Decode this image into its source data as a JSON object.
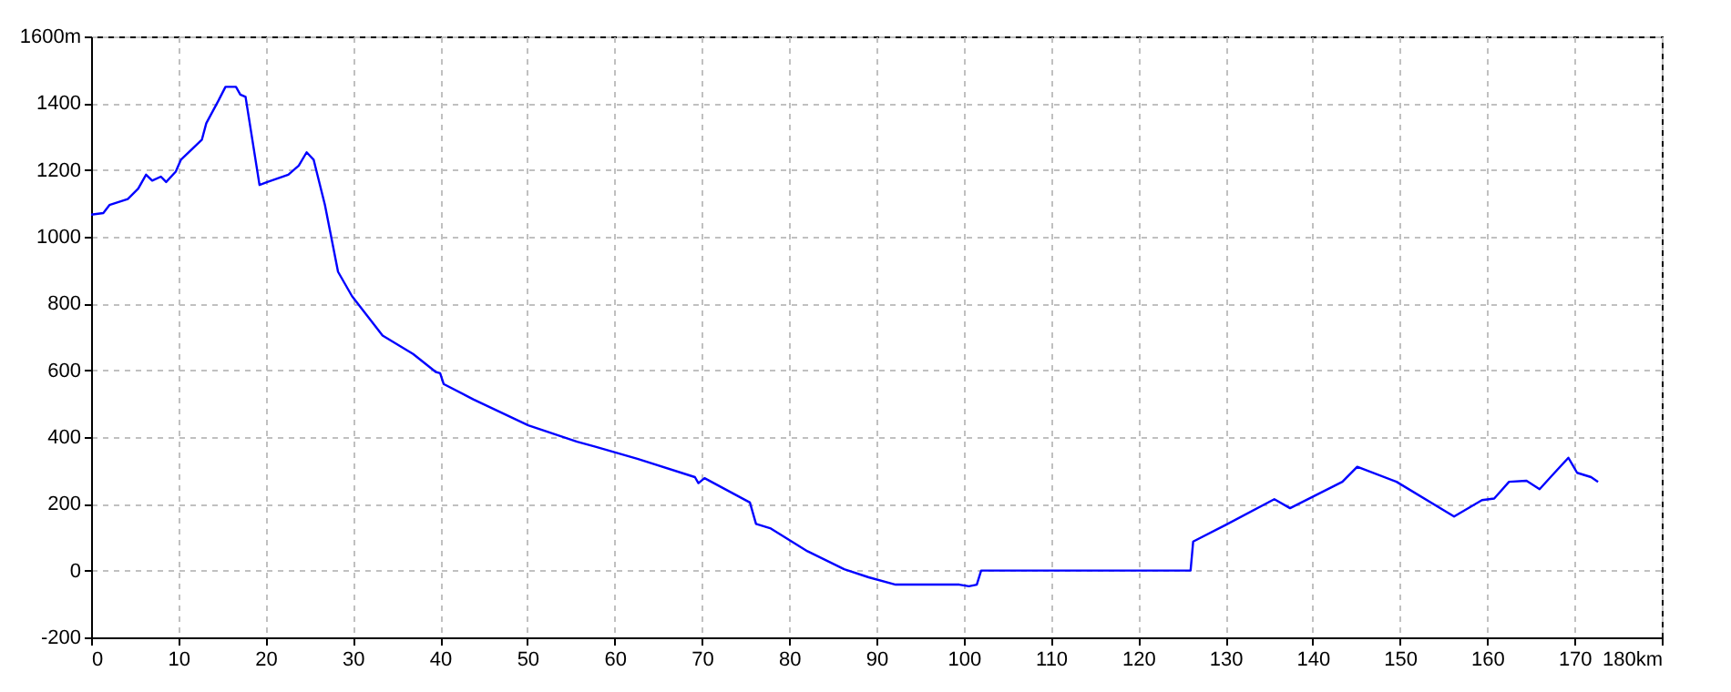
{
  "chart_data": {
    "type": "line",
    "x": [
      0,
      1.4,
      2.1,
      4.2,
      5.4,
      6.3,
      7.0,
      8.0,
      8.6,
      9.7,
      10.3,
      11.8,
      12.7,
      13.2,
      14.6,
      15.4,
      16.6,
      17.1,
      17.7,
      19.3,
      20.2,
      22.6,
      23.8,
      24.7,
      25.5,
      26.8,
      28.3,
      29.9,
      33.4,
      36.9,
      39.5,
      40.0,
      40.4,
      43.8,
      50.1,
      55.7,
      57.8,
      62.6,
      69.2,
      69.6,
      70.3,
      75.5,
      76.2,
      77.9,
      82.1,
      86.3,
      89.1,
      92.2,
      99.5,
      100.6,
      101.5,
      102.0,
      126.0,
      126.3,
      130.1,
      135.6,
      137.4,
      143.4,
      145.1,
      149.6,
      156.2,
      159.4,
      160.8,
      162.5,
      164.5,
      166.0,
      167.4,
      169.3,
      170.3,
      171.9,
      172.7
    ],
    "series": [
      {
        "color": "#0000ff",
        "values": [
          1066,
          1071,
          1095,
          1113,
          1144,
          1186,
          1168,
          1180,
          1164,
          1195,
          1231,
          1268,
          1291,
          1340,
          1408,
          1449,
          1449,
          1426,
          1419,
          1155,
          1164,
          1186,
          1213,
          1253,
          1231,
          1095,
          895,
          822,
          704,
          649,
          595,
          591,
          559,
          513,
          435,
          386,
          371,
          335,
          280,
          262,
          277,
          204,
          140,
          126,
          58,
          4,
          -20,
          -42,
          -42,
          -47,
          -42,
          0,
          0,
          87,
          138,
          214,
          187,
          266,
          311,
          266,
          162,
          211,
          216,
          266,
          269,
          244,
          284,
          338,
          293,
          280,
          266
        ]
      }
    ],
    "xlim": [
      0,
      180
    ],
    "xticks": [
      0,
      10,
      20,
      30,
      40,
      50,
      60,
      70,
      80,
      90,
      100,
      110,
      120,
      130,
      140,
      150,
      160,
      170,
      {
        "value": 180,
        "label": "180km"
      }
    ],
    "ylim": [
      -200,
      1600
    ],
    "yticks": [
      -200,
      0,
      200,
      400,
      600,
      800,
      1000,
      1200,
      1400,
      {
        "value": 1600,
        "label": "1600m"
      }
    ],
    "grid": true,
    "marker": "none",
    "line_style": "solid"
  }
}
